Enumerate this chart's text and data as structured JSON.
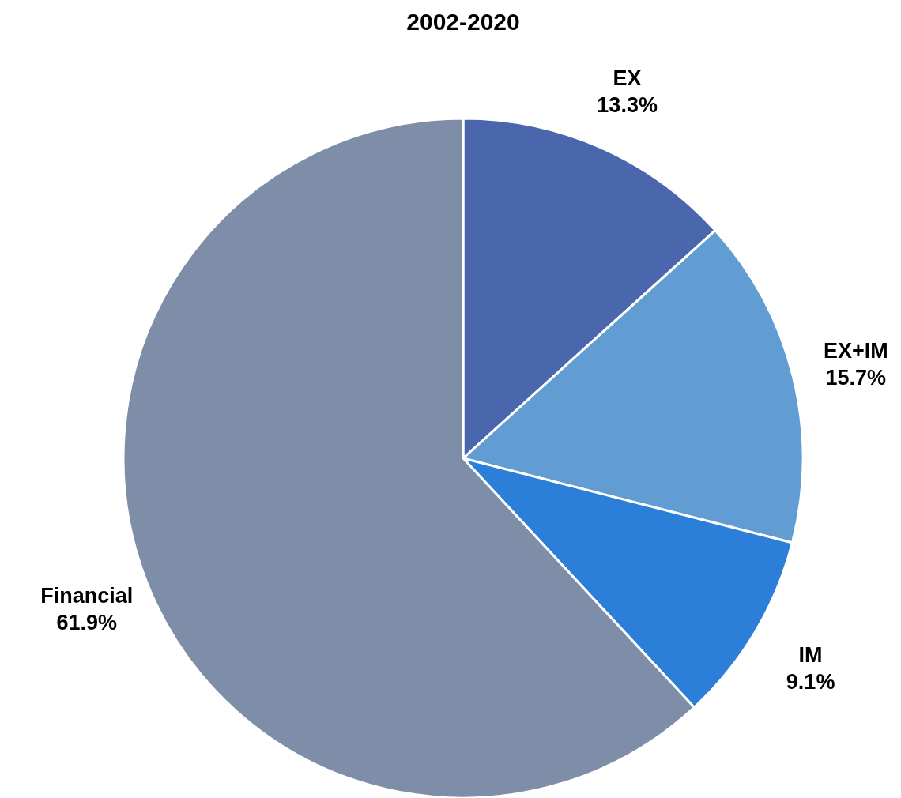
{
  "chart_data": {
    "type": "pie",
    "title": "2002-2020",
    "categories": [
      "EX",
      "EX+IM",
      "IM",
      "Financial"
    ],
    "values": [
      13.3,
      15.7,
      9.1,
      61.9
    ],
    "value_labels": [
      "13.3%",
      "15.7%",
      "9.1%",
      "61.9%"
    ],
    "colors": [
      "#4a67ae",
      "#619dd2",
      "#2b7fd8",
      "#7f8ea8"
    ],
    "legend": false
  }
}
